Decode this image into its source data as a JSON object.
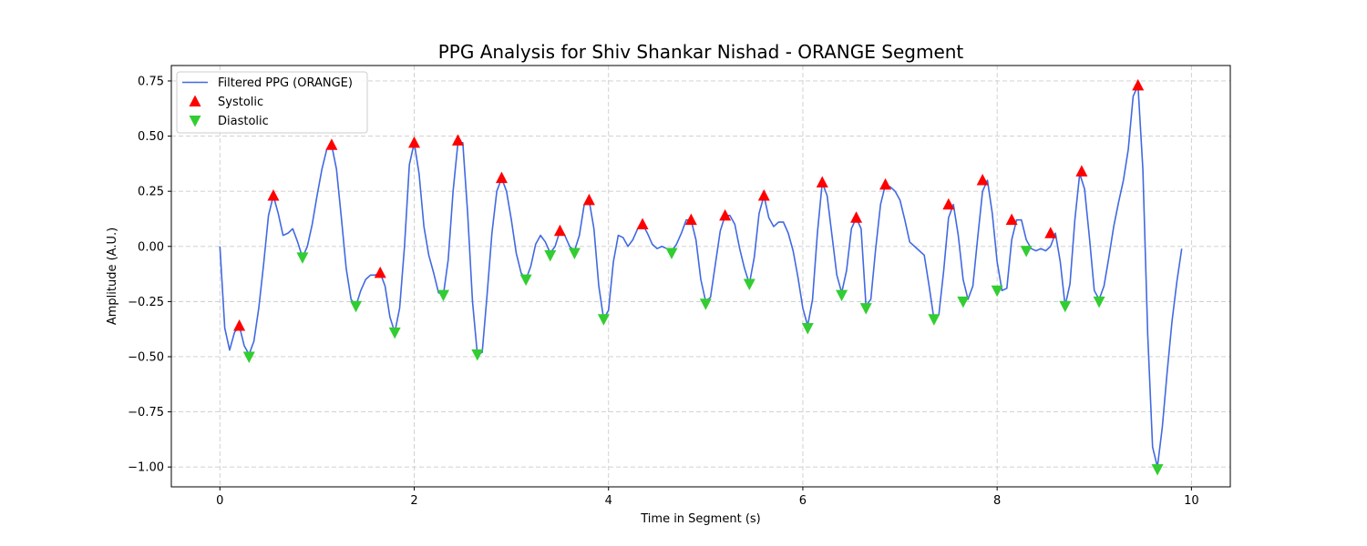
{
  "chart_data": {
    "type": "line",
    "title": "PPG Analysis for Shiv Shankar Nishad - ORANGE Segment",
    "xlabel": "Time in Segment (s)",
    "ylabel": "Amplitude (A.U.)",
    "xlim": [
      -0.5,
      10.4
    ],
    "ylim": [
      -1.09,
      0.82
    ],
    "xticks": [
      0,
      2,
      4,
      6,
      8,
      10
    ],
    "xtick_labels": [
      "0",
      "2",
      "4",
      "6",
      "8",
      "10"
    ],
    "yticks": [
      -1.0,
      -0.75,
      -0.5,
      -0.25,
      0.0,
      0.25,
      0.5,
      0.75
    ],
    "ytick_labels": [
      "−1.00",
      "−0.75",
      "−0.50",
      "−0.25",
      "0.00",
      "0.25",
      "0.50",
      "0.75"
    ],
    "grid": true,
    "legend_position": "top-left",
    "colors": {
      "line": "#4169e1",
      "systolic": "#ff0000",
      "diastolic": "#32cd32",
      "grid": "#cccccc"
    },
    "series": [
      {
        "name": "Filtered PPG (ORANGE)",
        "type": "line",
        "points": [
          [
            0.0,
            0.0
          ],
          [
            0.05,
            -0.37
          ],
          [
            0.1,
            -0.47
          ],
          [
            0.15,
            -0.39
          ],
          [
            0.2,
            -0.36
          ],
          [
            0.25,
            -0.45
          ],
          [
            0.3,
            -0.49
          ],
          [
            0.35,
            -0.43
          ],
          [
            0.4,
            -0.28
          ],
          [
            0.45,
            -0.08
          ],
          [
            0.5,
            0.14
          ],
          [
            0.55,
            0.23
          ],
          [
            0.6,
            0.15
          ],
          [
            0.65,
            0.05
          ],
          [
            0.7,
            0.06
          ],
          [
            0.75,
            0.08
          ],
          [
            0.8,
            0.02
          ],
          [
            0.85,
            -0.05
          ],
          [
            0.9,
            0.0
          ],
          [
            0.95,
            0.1
          ],
          [
            1.0,
            0.23
          ],
          [
            1.05,
            0.35
          ],
          [
            1.1,
            0.44
          ],
          [
            1.15,
            0.46
          ],
          [
            1.2,
            0.35
          ],
          [
            1.25,
            0.13
          ],
          [
            1.3,
            -0.1
          ],
          [
            1.35,
            -0.24
          ],
          [
            1.4,
            -0.27
          ],
          [
            1.45,
            -0.2
          ],
          [
            1.5,
            -0.15
          ],
          [
            1.55,
            -0.13
          ],
          [
            1.6,
            -0.13
          ],
          [
            1.65,
            -0.12
          ],
          [
            1.7,
            -0.18
          ],
          [
            1.75,
            -0.32
          ],
          [
            1.8,
            -0.39
          ],
          [
            1.85,
            -0.28
          ],
          [
            1.9,
            0.0
          ],
          [
            1.95,
            0.37
          ],
          [
            2.0,
            0.47
          ],
          [
            2.05,
            0.33
          ],
          [
            2.1,
            0.09
          ],
          [
            2.15,
            -0.04
          ],
          [
            2.2,
            -0.12
          ],
          [
            2.25,
            -0.21
          ],
          [
            2.3,
            -0.22
          ],
          [
            2.35,
            -0.06
          ],
          [
            2.4,
            0.25
          ],
          [
            2.45,
            0.47
          ],
          [
            2.5,
            0.47
          ],
          [
            2.55,
            0.15
          ],
          [
            2.6,
            -0.25
          ],
          [
            2.65,
            -0.49
          ],
          [
            2.7,
            -0.48
          ],
          [
            2.75,
            -0.22
          ],
          [
            2.8,
            0.06
          ],
          [
            2.85,
            0.25
          ],
          [
            2.9,
            0.31
          ],
          [
            2.95,
            0.25
          ],
          [
            3.0,
            0.12
          ],
          [
            3.05,
            -0.03
          ],
          [
            3.1,
            -0.12
          ],
          [
            3.15,
            -0.15
          ],
          [
            3.2,
            -0.09
          ],
          [
            3.25,
            0.01
          ],
          [
            3.3,
            0.05
          ],
          [
            3.35,
            0.02
          ],
          [
            3.4,
            -0.03
          ],
          [
            3.45,
            0.0
          ],
          [
            3.5,
            0.07
          ],
          [
            3.55,
            0.05
          ],
          [
            3.6,
            0.0
          ],
          [
            3.65,
            -0.02
          ],
          [
            3.7,
            0.05
          ],
          [
            3.75,
            0.19
          ],
          [
            3.8,
            0.21
          ],
          [
            3.85,
            0.08
          ],
          [
            3.9,
            -0.18
          ],
          [
            3.95,
            -0.33
          ],
          [
            4.0,
            -0.29
          ],
          [
            4.05,
            -0.07
          ],
          [
            4.1,
            0.05
          ],
          [
            4.15,
            0.04
          ],
          [
            4.2,
            0.0
          ],
          [
            4.25,
            0.03
          ],
          [
            4.3,
            0.08
          ],
          [
            4.35,
            0.1
          ],
          [
            4.4,
            0.06
          ],
          [
            4.45,
            0.01
          ],
          [
            4.5,
            -0.01
          ],
          [
            4.55,
            0.0
          ],
          [
            4.6,
            -0.01
          ],
          [
            4.65,
            -0.02
          ],
          [
            4.7,
            0.01
          ],
          [
            4.75,
            0.06
          ],
          [
            4.8,
            0.12
          ],
          [
            4.85,
            0.12
          ],
          [
            4.9,
            0.03
          ],
          [
            4.95,
            -0.15
          ],
          [
            5.0,
            -0.25
          ],
          [
            5.05,
            -0.23
          ],
          [
            5.1,
            -0.08
          ],
          [
            5.15,
            0.07
          ],
          [
            5.2,
            0.14
          ],
          [
            5.25,
            0.14
          ],
          [
            5.3,
            0.1
          ],
          [
            5.35,
            -0.01
          ],
          [
            5.4,
            -0.1
          ],
          [
            5.45,
            -0.17
          ],
          [
            5.5,
            -0.05
          ],
          [
            5.55,
            0.15
          ],
          [
            5.6,
            0.23
          ],
          [
            5.65,
            0.13
          ],
          [
            5.7,
            0.09
          ],
          [
            5.75,
            0.11
          ],
          [
            5.8,
            0.11
          ],
          [
            5.85,
            0.06
          ],
          [
            5.9,
            -0.02
          ],
          [
            5.95,
            -0.14
          ],
          [
            6.0,
            -0.28
          ],
          [
            6.05,
            -0.36
          ],
          [
            6.1,
            -0.24
          ],
          [
            6.15,
            0.06
          ],
          [
            6.2,
            0.29
          ],
          [
            6.25,
            0.23
          ],
          [
            6.3,
            0.05
          ],
          [
            6.35,
            -0.13
          ],
          [
            6.4,
            -0.21
          ],
          [
            6.45,
            -0.11
          ],
          [
            6.5,
            0.08
          ],
          [
            6.55,
            0.13
          ],
          [
            6.6,
            0.08
          ],
          [
            6.65,
            -0.27
          ],
          [
            6.7,
            -0.24
          ],
          [
            6.75,
            -0.01
          ],
          [
            6.8,
            0.19
          ],
          [
            6.85,
            0.28
          ],
          [
            6.9,
            0.27
          ],
          [
            6.95,
            0.25
          ],
          [
            7.0,
            0.21
          ],
          [
            7.05,
            0.12
          ],
          [
            7.1,
            0.02
          ],
          [
            7.15,
            0.0
          ],
          [
            7.2,
            -0.02
          ],
          [
            7.25,
            -0.04
          ],
          [
            7.3,
            -0.18
          ],
          [
            7.35,
            -0.33
          ],
          [
            7.4,
            -0.31
          ],
          [
            7.45,
            -0.11
          ],
          [
            7.5,
            0.13
          ],
          [
            7.55,
            0.19
          ],
          [
            7.6,
            0.05
          ],
          [
            7.65,
            -0.15
          ],
          [
            7.7,
            -0.24
          ],
          [
            7.75,
            -0.18
          ],
          [
            7.8,
            0.04
          ],
          [
            7.85,
            0.25
          ],
          [
            7.9,
            0.3
          ],
          [
            7.95,
            0.15
          ],
          [
            8.0,
            -0.07
          ],
          [
            8.05,
            -0.2
          ],
          [
            8.1,
            -0.19
          ],
          [
            8.15,
            0.03
          ],
          [
            8.2,
            0.12
          ],
          [
            8.25,
            0.12
          ],
          [
            8.3,
            0.03
          ],
          [
            8.35,
            -0.01
          ],
          [
            8.4,
            -0.02
          ],
          [
            8.45,
            -0.01
          ],
          [
            8.5,
            -0.02
          ],
          [
            8.55,
            0.0
          ],
          [
            8.6,
            0.06
          ],
          [
            8.65,
            -0.07
          ],
          [
            8.7,
            -0.27
          ],
          [
            8.75,
            -0.17
          ],
          [
            8.8,
            0.12
          ],
          [
            8.85,
            0.33
          ],
          [
            8.9,
            0.26
          ],
          [
            8.95,
            0.04
          ],
          [
            9.0,
            -0.2
          ],
          [
            9.05,
            -0.24
          ],
          [
            9.1,
            -0.18
          ],
          [
            9.15,
            -0.05
          ],
          [
            9.2,
            0.09
          ],
          [
            9.25,
            0.2
          ],
          [
            9.3,
            0.3
          ],
          [
            9.35,
            0.44
          ],
          [
            9.4,
            0.68
          ],
          [
            9.45,
            0.73
          ],
          [
            9.5,
            0.35
          ],
          [
            9.55,
            -0.4
          ],
          [
            9.6,
            -0.91
          ],
          [
            9.65,
            -1.0
          ],
          [
            9.7,
            -0.82
          ],
          [
            9.75,
            -0.57
          ],
          [
            9.8,
            -0.34
          ],
          [
            9.85,
            -0.16
          ],
          [
            9.9,
            -0.01
          ]
        ]
      },
      {
        "name": "Systolic",
        "type": "scatter",
        "marker": "triangle-up",
        "points": [
          [
            0.2,
            -0.36
          ],
          [
            0.55,
            0.23
          ],
          [
            1.15,
            0.46
          ],
          [
            1.65,
            -0.12
          ],
          [
            2.0,
            0.47
          ],
          [
            2.45,
            0.48
          ],
          [
            2.9,
            0.31
          ],
          [
            3.5,
            0.07
          ],
          [
            3.8,
            0.21
          ],
          [
            4.35,
            0.1
          ],
          [
            4.85,
            0.12
          ],
          [
            5.2,
            0.14
          ],
          [
            5.6,
            0.23
          ],
          [
            6.2,
            0.29
          ],
          [
            6.55,
            0.13
          ],
          [
            6.85,
            0.28
          ],
          [
            7.5,
            0.19
          ],
          [
            7.85,
            0.3
          ],
          [
            8.15,
            0.12
          ],
          [
            8.55,
            0.06
          ],
          [
            8.87,
            0.34
          ],
          [
            9.45,
            0.73
          ]
        ]
      },
      {
        "name": "Diastolic",
        "type": "scatter",
        "marker": "triangle-down",
        "points": [
          [
            0.3,
            -0.5
          ],
          [
            0.85,
            -0.05
          ],
          [
            1.4,
            -0.27
          ],
          [
            1.8,
            -0.39
          ],
          [
            2.3,
            -0.22
          ],
          [
            2.65,
            -0.49
          ],
          [
            3.15,
            -0.15
          ],
          [
            3.4,
            -0.04
          ],
          [
            3.65,
            -0.03
          ],
          [
            3.95,
            -0.33
          ],
          [
            4.65,
            -0.03
          ],
          [
            5.0,
            -0.26
          ],
          [
            5.45,
            -0.17
          ],
          [
            6.05,
            -0.37
          ],
          [
            6.4,
            -0.22
          ],
          [
            6.65,
            -0.28
          ],
          [
            7.35,
            -0.33
          ],
          [
            7.65,
            -0.25
          ],
          [
            8.0,
            -0.2
          ],
          [
            8.3,
            -0.02
          ],
          [
            8.7,
            -0.27
          ],
          [
            9.05,
            -0.25
          ],
          [
            9.65,
            -1.01
          ]
        ]
      }
    ]
  }
}
